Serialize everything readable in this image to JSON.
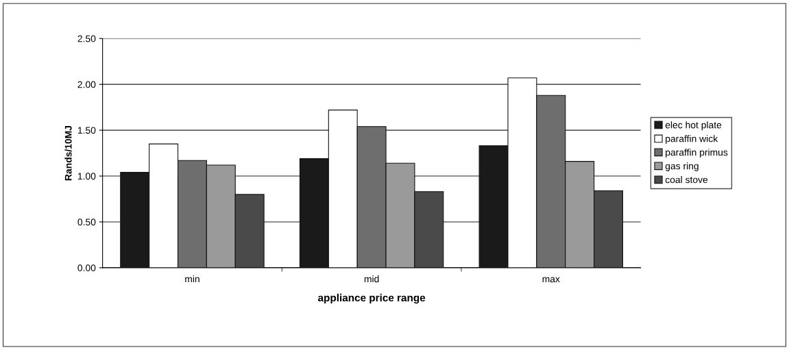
{
  "chart_data": {
    "type": "bar",
    "xlabel": "appliance price range",
    "ylabel": "Rands/10MJ",
    "categories": [
      "min",
      "mid",
      "max"
    ],
    "series": [
      {
        "name": "elec hot plate",
        "color": "#1a1a1a",
        "values": [
          1.04,
          1.19,
          1.33
        ]
      },
      {
        "name": "paraffin wick",
        "color": "#ffffff",
        "values": [
          1.35,
          1.72,
          2.07
        ]
      },
      {
        "name": "paraffin primus",
        "color": "#6e6e6e",
        "values": [
          1.17,
          1.54,
          1.88
        ]
      },
      {
        "name": "gas ring",
        "color": "#9a9a9a",
        "values": [
          1.12,
          1.14,
          1.16
        ]
      },
      {
        "name": "coal stove",
        "color": "#4a4a4a",
        "values": [
          0.8,
          0.83,
          0.84
        ]
      }
    ],
    "ylim": [
      0,
      2.5
    ],
    "yticks": [
      {
        "value": 0,
        "label": "0.00"
      },
      {
        "value": 0.5,
        "label": "0.50"
      },
      {
        "value": 1,
        "label": "1.00"
      },
      {
        "value": 1.5,
        "label": "1.50"
      },
      {
        "value": 2,
        "label": "2.00"
      },
      {
        "value": 2.5,
        "label": "2.50"
      }
    ],
    "grid": "y",
    "legend": "right"
  }
}
